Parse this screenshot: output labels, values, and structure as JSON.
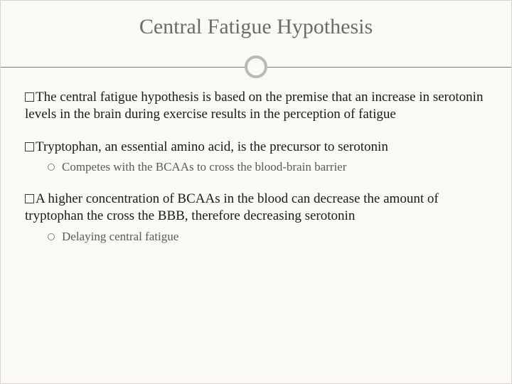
{
  "slide": {
    "title": "Central Fatigue Hypothesis",
    "background_color": "#fbf9f4",
    "border_color": "#d8d5cc",
    "title_color": "#6b6b6b",
    "title_fontsize": 30,
    "divider": {
      "line_color": "#7a7a7a",
      "circle_border_color": "#b8b8b8",
      "circle_size": 32,
      "circle_border_width": 4
    },
    "body_color": "#1a1a1a",
    "body_fontsize": 19,
    "sub_color": "#5a5a5a",
    "sub_fontsize": 17,
    "bullets": [
      {
        "text": "The central fatigue hypothesis is based on the premise that an increase in serotonin levels in the brain during exercise results in the perception of fatigue",
        "subs": []
      },
      {
        "text": "Tryptophan, an essential amino acid, is the precursor to serotonin",
        "subs": [
          {
            "text": "Competes with the BCAAs to cross the blood-brain barrier"
          }
        ]
      },
      {
        "text": "A higher concentration of BCAAs in the blood can decrease the amount of tryptophan the cross the BBB, therefore decreasing serotonin",
        "subs": [
          {
            "text": "Delaying central fatigue"
          }
        ]
      }
    ]
  }
}
